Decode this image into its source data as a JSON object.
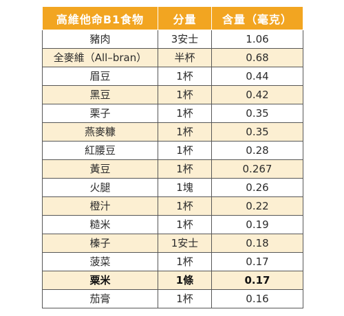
{
  "table": {
    "headers": [
      "高維他命B1食物",
      "分量",
      "含量（毫克）"
    ],
    "rows": [
      {
        "food": "豬肉",
        "amount": "3安士",
        "content": "1.06"
      },
      {
        "food": "全麥維（All–bran）",
        "amount": "半杯",
        "content": "0.68"
      },
      {
        "food": "眉豆",
        "amount": "1杯",
        "content": "0.44"
      },
      {
        "food": "黑豆",
        "amount": "1杯",
        "content": "0.42"
      },
      {
        "food": "栗子",
        "amount": "1杯",
        "content": "0.35"
      },
      {
        "food": "燕麥糠",
        "amount": "1杯",
        "content": "0.35"
      },
      {
        "food": "紅腰豆",
        "amount": "1杯",
        "content": "0.28"
      },
      {
        "food": "黃豆",
        "amount": "1杯",
        "content": "0.267"
      },
      {
        "food": "火腿",
        "amount": "1塊",
        "content": "0.26"
      },
      {
        "food": "橙汁",
        "amount": "1杯",
        "content": "0.22"
      },
      {
        "food": "糙米",
        "amount": "1杯",
        "content": "0.19"
      },
      {
        "food": "榛子",
        "amount": "1安士",
        "content": "0.18"
      },
      {
        "food": "菠菜",
        "amount": "1杯",
        "content": "0.17"
      },
      {
        "food": "粟米",
        "amount": "1條",
        "content": "0.17"
      },
      {
        "food": "茄膏",
        "amount": "1杯",
        "content": "0.16"
      }
    ]
  },
  "colors": {
    "header_bg": "#f2a521",
    "row_shade": "#fcefd2"
  }
}
